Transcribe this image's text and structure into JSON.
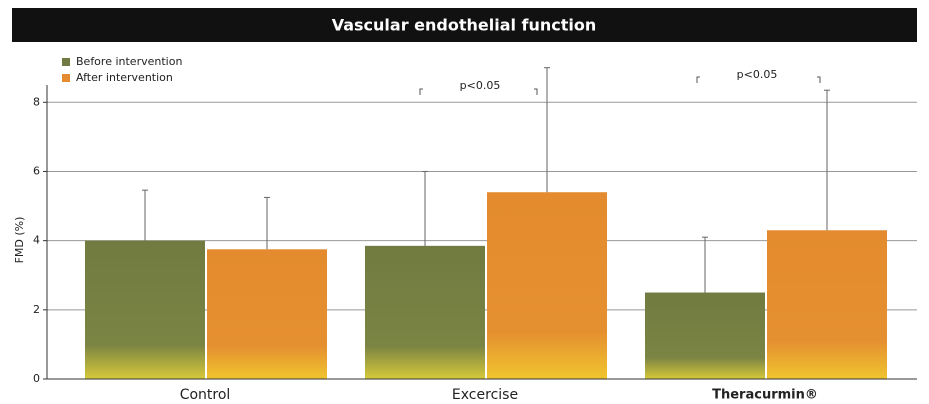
{
  "chart_data": {
    "type": "bar",
    "title": "Vascular endothelial function",
    "ylabel": "FMD (%)",
    "categories": [
      "Control",
      "Excercise",
      "Theracurmin®"
    ],
    "series": [
      {
        "name": "Before intervention",
        "color": "#717b41",
        "values": [
          4.0,
          3.85,
          2.5
        ],
        "errors": [
          1.46,
          2.15,
          1.6
        ]
      },
      {
        "name": "After intervention",
        "color": "#e38b2e",
        "values": [
          3.75,
          5.4,
          4.3
        ],
        "errors": [
          1.5,
          3.6,
          4.05
        ]
      }
    ],
    "annotations": [
      "p<0.05",
      "p<0.05"
    ],
    "ylim": [
      0,
      8.5
    ],
    "yticks": [
      0,
      2,
      4,
      6,
      8
    ],
    "grid": true,
    "legend": "upper left"
  }
}
